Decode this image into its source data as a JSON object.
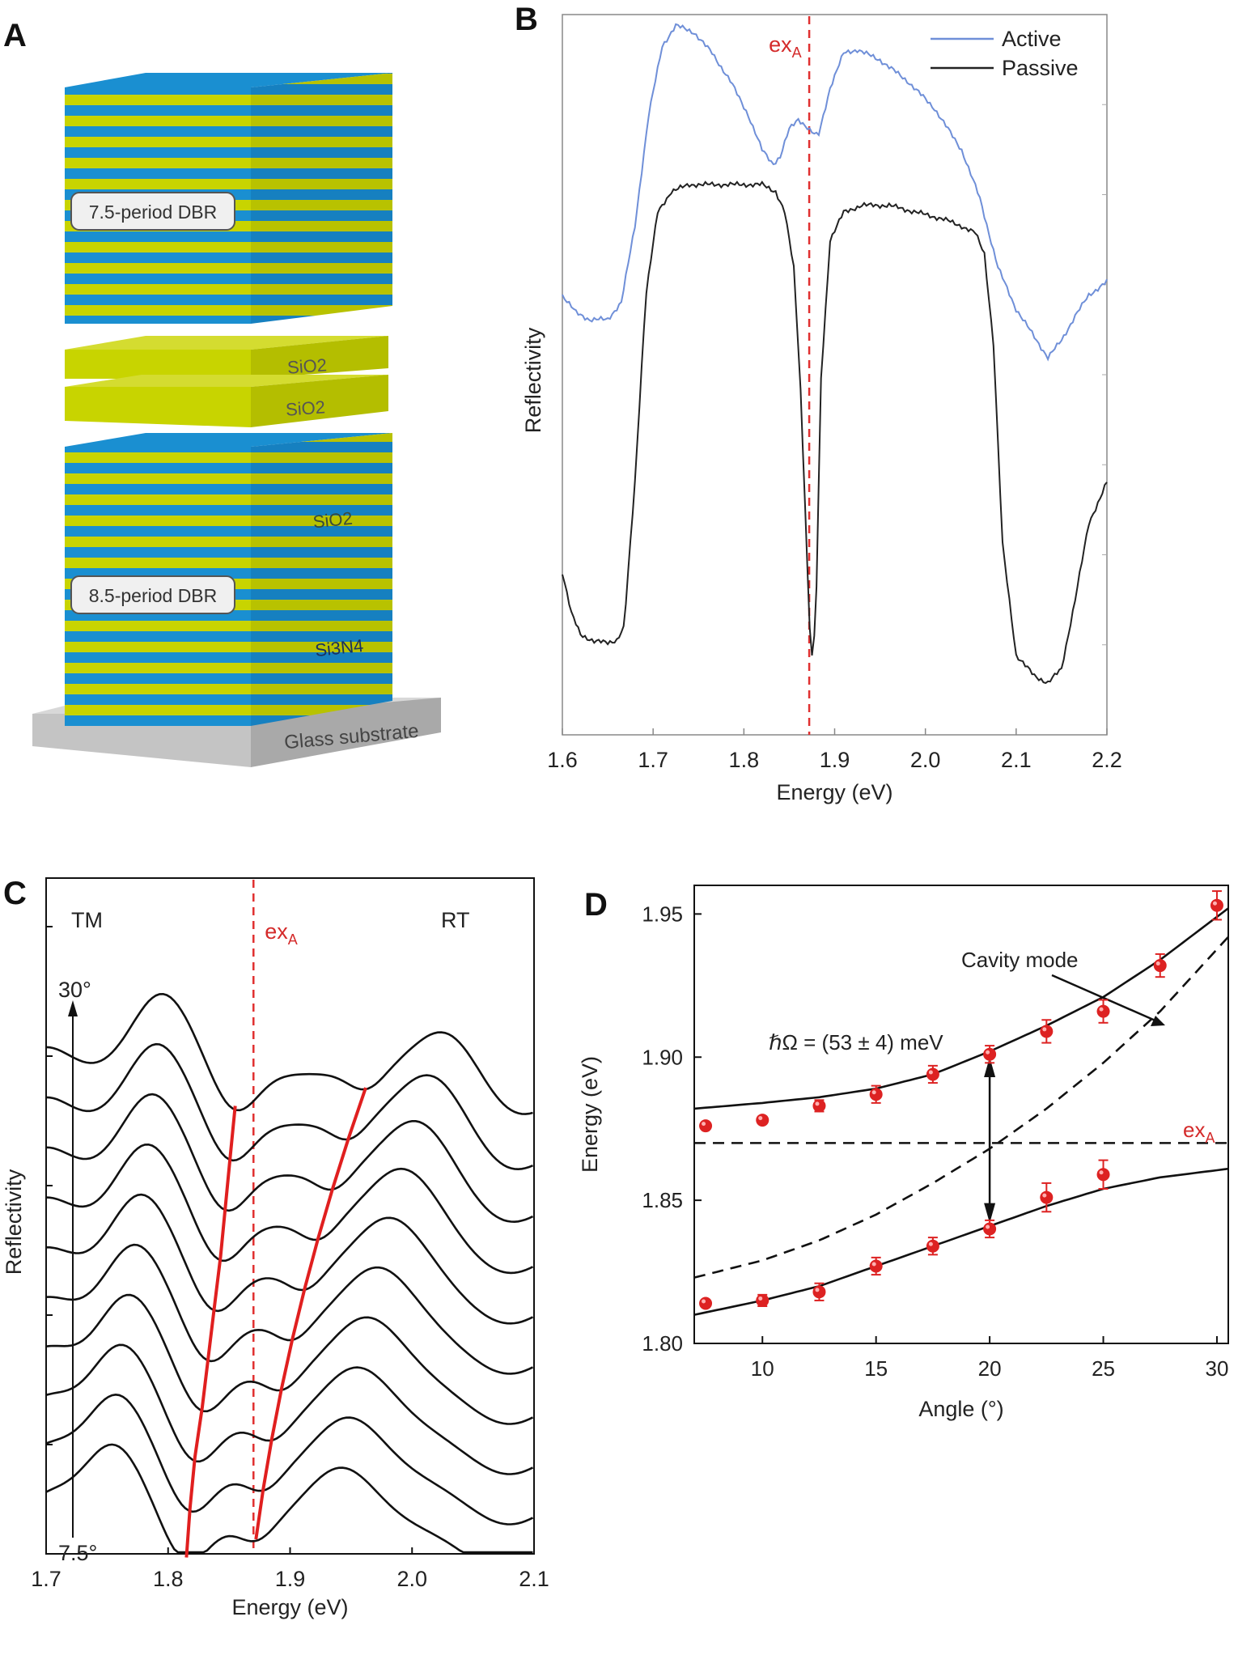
{
  "panels": {
    "a": "A",
    "b": "B",
    "c": "C",
    "d": "D"
  },
  "panelA": {
    "top_label": "7.5-period DBR",
    "spacer_upper": "SiO2",
    "spacer_lower": "SiO2",
    "bottom_label": "8.5-period DBR",
    "layer_sio2": "SiO2",
    "layer_si3n4": "Si3N4",
    "substrate": "Glass substrate",
    "colors": {
      "dbr_blue": "#1a8fd1",
      "layer_yellow": "#c8d400",
      "substrate_gray": "#b8b8b8"
    }
  },
  "chart_data": [
    {
      "panel": "B",
      "type": "line",
      "xlabel": "Energy (eV)",
      "ylabel": "Reflectivity",
      "xlim": [
        1.6,
        2.2
      ],
      "xticks": [
        "1.6",
        "1.7",
        "1.8",
        "1.9",
        "2.0",
        "2.1",
        "2.2"
      ],
      "marker_label": "exA",
      "marker_x": 1.872,
      "legend_position": "top-right",
      "series": [
        {
          "name": "Active",
          "color": "#6f8fd8",
          "x": [
            1.6,
            1.615,
            1.63,
            1.65,
            1.665,
            1.68,
            1.695,
            1.71,
            1.725,
            1.745,
            1.765,
            1.785,
            1.805,
            1.82,
            1.832,
            1.84,
            1.85,
            1.86,
            1.868,
            1.875,
            1.882,
            1.895,
            1.91,
            1.925,
            1.95,
            1.98,
            2.01,
            2.04,
            2.06,
            2.08,
            2.1,
            2.12,
            2.135,
            2.15,
            2.165,
            2.18,
            2.2
          ],
          "y": [
            0.62,
            0.595,
            0.585,
            0.585,
            0.61,
            0.72,
            0.88,
            0.98,
            1.01,
            1.0,
            0.97,
            0.93,
            0.88,
            0.83,
            0.81,
            0.82,
            0.86,
            0.875,
            0.865,
            0.855,
            0.85,
            0.92,
            0.97,
            0.975,
            0.96,
            0.93,
            0.89,
            0.83,
            0.76,
            0.66,
            0.6,
            0.56,
            0.53,
            0.555,
            0.59,
            0.62,
            0.64
          ]
        },
        {
          "name": "Passive",
          "color": "#222222",
          "x": [
            1.6,
            1.61,
            1.62,
            1.635,
            1.65,
            1.66,
            1.668,
            1.68,
            1.692,
            1.705,
            1.72,
            1.74,
            1.76,
            1.78,
            1.8,
            1.82,
            1.835,
            1.845,
            1.855,
            1.862,
            1.868,
            1.872,
            1.876,
            1.88,
            1.885,
            1.895,
            1.91,
            1.93,
            1.96,
            1.99,
            2.02,
            2.04,
            2.055,
            2.065,
            2.075,
            2.085,
            2.1,
            2.12,
            2.135,
            2.15,
            2.165,
            2.18,
            2.2
          ],
          "y": [
            0.22,
            0.16,
            0.13,
            0.12,
            0.118,
            0.122,
            0.14,
            0.35,
            0.62,
            0.74,
            0.77,
            0.78,
            0.78,
            0.78,
            0.78,
            0.78,
            0.77,
            0.74,
            0.66,
            0.5,
            0.3,
            0.15,
            0.08,
            0.2,
            0.5,
            0.7,
            0.74,
            0.75,
            0.75,
            0.74,
            0.73,
            0.72,
            0.71,
            0.68,
            0.55,
            0.26,
            0.1,
            0.07,
            0.06,
            0.08,
            0.18,
            0.29,
            0.35
          ]
        }
      ]
    },
    {
      "panel": "C",
      "type": "line",
      "xlabel": "Energy (eV)",
      "ylabel": "Reflectivity",
      "xlim": [
        1.7,
        2.1
      ],
      "xticks": [
        "1.7",
        "1.8",
        "1.9",
        "2.0",
        "2.1"
      ],
      "marker_label": "exA",
      "marker_x": 1.87,
      "text_left": "TM",
      "text_right": "RT",
      "angle_top": "30°",
      "angle_bottom": "7.5°",
      "angles": [
        7.5,
        10,
        12.5,
        15,
        17.5,
        20,
        22.5,
        25,
        27.5,
        30
      ],
      "lower_polariton_dip": [
        1.815,
        1.818,
        1.822,
        1.828,
        1.833,
        1.838,
        1.843,
        1.847,
        1.851,
        1.855
      ],
      "upper_polariton_dip": [
        1.872,
        1.878,
        1.885,
        1.893,
        1.902,
        1.912,
        1.923,
        1.935,
        1.948,
        1.962
      ]
    },
    {
      "panel": "D",
      "type": "scatter",
      "xlabel": "Angle (°)",
      "ylabel": "Energy (eV)",
      "xlim": [
        7,
        30.5
      ],
      "ylim": [
        1.8,
        1.96
      ],
      "xticks": [
        "10",
        "15",
        "20",
        "25",
        "30"
      ],
      "yticks": [
        "1.80",
        "1.85",
        "1.90",
        "1.95"
      ],
      "annotation_cavity": "Cavity mode",
      "annotation_rabi": "ℏΩ = (53 ± 4) meV",
      "annotation_exciton": "exA",
      "exciton_energy": 1.87,
      "upper_points": {
        "x": [
          7.5,
          10,
          12.5,
          15,
          17.5,
          20,
          22.5,
          25,
          27.5,
          30
        ],
        "y": [
          1.876,
          1.878,
          1.883,
          1.887,
          1.894,
          1.901,
          1.909,
          1.916,
          1.932,
          1.953
        ],
        "err": [
          0.001,
          0.001,
          0.002,
          0.003,
          0.003,
          0.003,
          0.004,
          0.004,
          0.004,
          0.005
        ]
      },
      "lower_points": {
        "x": [
          7.5,
          10,
          12.5,
          15,
          17.5,
          20,
          22.5,
          25
        ],
        "y": [
          1.814,
          1.815,
          1.818,
          1.827,
          1.834,
          1.84,
          1.851,
          1.859
        ],
        "err": [
          0.001,
          0.002,
          0.003,
          0.003,
          0.003,
          0.003,
          0.005,
          0.005
        ]
      },
      "upper_fit": {
        "x": [
          7,
          10,
          12.5,
          15,
          17.5,
          20,
          22.5,
          25,
          27.5,
          30.5
        ],
        "y": [
          1.882,
          1.884,
          1.886,
          1.889,
          1.894,
          1.902,
          1.911,
          1.921,
          1.934,
          1.952
        ]
      },
      "lower_fit": {
        "x": [
          7,
          10,
          12.5,
          15,
          17.5,
          20,
          22.5,
          25,
          27.5,
          30.5
        ],
        "y": [
          1.81,
          1.815,
          1.82,
          1.827,
          1.834,
          1.841,
          1.848,
          1.854,
          1.858,
          1.861
        ]
      },
      "cavity_mode": {
        "x": [
          7,
          10,
          12.5,
          15,
          17.5,
          20,
          22.5,
          25,
          27.5,
          30.5
        ],
        "y": [
          1.823,
          1.829,
          1.836,
          1.845,
          1.856,
          1.868,
          1.882,
          1.898,
          1.916,
          1.942
        ]
      },
      "point_color": "#dd2222"
    }
  ]
}
